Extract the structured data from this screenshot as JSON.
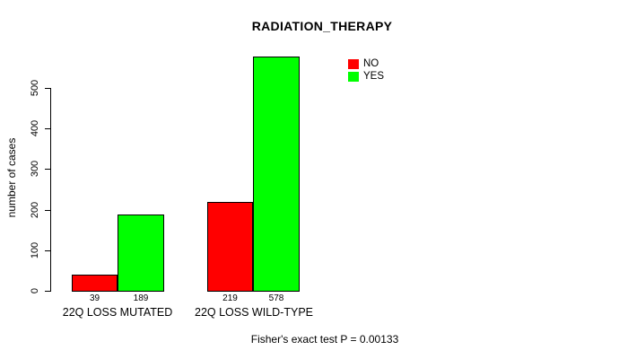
{
  "title": "RADIATION_THERAPY",
  "footer": "Fisher's exact test P = 0.00133",
  "chart_data": {
    "type": "bar",
    "title": "RADIATION_THERAPY",
    "xlabel": "",
    "ylabel": "number of cases",
    "categories": [
      "22Q LOSS MUTATED",
      "22Q LOSS WILD-TYPE"
    ],
    "series": [
      {
        "name": "NO",
        "color": "#ff0000",
        "values": [
          39,
          219
        ]
      },
      {
        "name": "YES",
        "color": "#00ff00",
        "values": [
          189,
          578
        ]
      }
    ],
    "bar_value_labels": [
      [
        "39",
        "219"
      ],
      [
        "189",
        "578"
      ]
    ],
    "yticks": [
      0,
      100,
      200,
      300,
      400,
      500
    ],
    "ylim": [
      0,
      500
    ],
    "grid": false,
    "legend_position": "top-right",
    "annotation": "Fisher's exact test P = 0.00133"
  },
  "legend": {
    "items": [
      {
        "label": "NO",
        "color": "#ff0000"
      },
      {
        "label": "YES",
        "color": "#00ff00"
      }
    ]
  }
}
